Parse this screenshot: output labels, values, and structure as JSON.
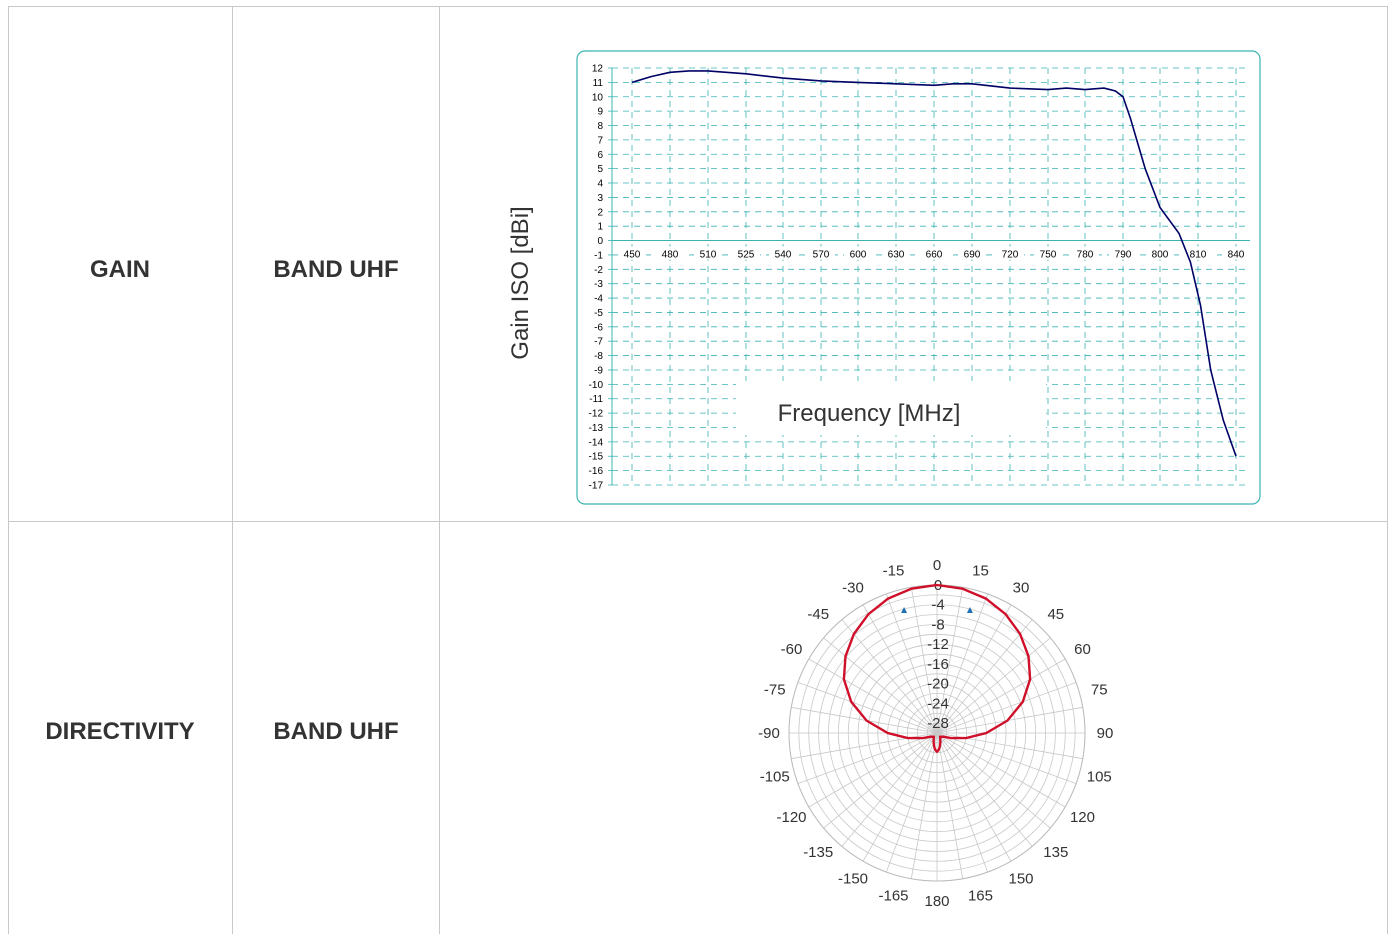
{
  "rows": [
    {
      "label": "GAIN",
      "band": "BAND UHF"
    },
    {
      "label": "DIRECTIVITY",
      "band": "BAND UHF"
    }
  ],
  "colors": {
    "grid_frame": "#3bb3b3",
    "gain_line": "#000066",
    "polar_line": "#d0102a",
    "polar_grid": "#c8c8c8",
    "marker": "#1f6fb5"
  },
  "chart_data": [
    {
      "type": "line",
      "title": "",
      "xlabel": "Frequency [MHz]",
      "ylabel": "Gain ISO [dBi]",
      "categories": [
        "450",
        "480",
        "510",
        "525",
        "540",
        "570",
        "600",
        "630",
        "660",
        "690",
        "720",
        "750",
        "780",
        "790",
        "800",
        "810",
        "840"
      ],
      "ylim": [
        -17,
        12
      ],
      "yticks": [
        12,
        11,
        10,
        9,
        8,
        7,
        6,
        5,
        4,
        3,
        2,
        1,
        0,
        -1,
        -2,
        -3,
        -4,
        -5,
        -6,
        -7,
        -8,
        -9,
        -10,
        -11,
        -12,
        -13,
        -14,
        -15,
        -16,
        -17
      ],
      "grid": true,
      "series": [
        {
          "values": [
            [
              450,
              11.0
            ],
            [
              465,
              11.4
            ],
            [
              480,
              11.7
            ],
            [
              495,
              11.8
            ],
            [
              510,
              11.8
            ],
            [
              525,
              11.6
            ],
            [
              540,
              11.3
            ],
            [
              570,
              11.1
            ],
            [
              600,
              11.0
            ],
            [
              630,
              10.9
            ],
            [
              660,
              10.8
            ],
            [
              675,
              10.9
            ],
            [
              690,
              10.9
            ],
            [
              720,
              10.6
            ],
            [
              750,
              10.5
            ],
            [
              765,
              10.6
            ],
            [
              780,
              10.5
            ],
            [
              785,
              10.6
            ],
            [
              788,
              10.4
            ],
            [
              790,
              10.0
            ],
            [
              792,
              8.5
            ],
            [
              796,
              5.0
            ],
            [
              800,
              2.3
            ],
            [
              805,
              0.5
            ],
            [
              808,
              -1.5
            ],
            [
              812,
              -4.5
            ],
            [
              820,
              -9.0
            ],
            [
              830,
              -12.5
            ],
            [
              840,
              -15.0
            ]
          ]
        }
      ]
    },
    {
      "type": "polar",
      "title": "",
      "angles": [
        "0",
        "15",
        "30",
        "45",
        "60",
        "75",
        "90",
        "105",
        "120",
        "135",
        "150",
        "165",
        "180",
        "-165",
        "-150",
        "-135",
        "-120",
        "-105",
        "-90",
        "-75",
        "-60",
        "-45",
        "-30",
        "-15"
      ],
      "radial_labels": [
        "0",
        "-4",
        "-8",
        "-12",
        "-16",
        "-20",
        "-24",
        "-28"
      ],
      "rlim": [
        -30,
        0
      ],
      "series": [
        {
          "values": [
            [
              0,
              0
            ],
            [
              10,
              -0.3
            ],
            [
              20,
              -1.0
            ],
            [
              30,
              -2.2
            ],
            [
              40,
              -3.8
            ],
            [
              50,
              -5.8
            ],
            [
              60,
              -8.2
            ],
            [
              70,
              -11.5
            ],
            [
              80,
              -15.5
            ],
            [
              90,
              -20
            ],
            [
              100,
              -24
            ],
            [
              110,
              -27
            ],
            [
              120,
              -28.5
            ],
            [
              140,
              -29
            ],
            [
              160,
              -28
            ],
            [
              170,
              -27
            ],
            [
              175,
              -26.5
            ],
            [
              180,
              -26.2
            ],
            [
              185,
              -26.5
            ],
            [
              190,
              -27
            ],
            [
              200,
              -28
            ],
            [
              220,
              -29
            ],
            [
              240,
              -28.5
            ],
            [
              250,
              -27
            ],
            [
              260,
              -24
            ],
            [
              270,
              -20
            ],
            [
              280,
              -15.5
            ],
            [
              290,
              -11.5
            ],
            [
              300,
              -8.2
            ],
            [
              310,
              -5.8
            ],
            [
              320,
              -3.8
            ],
            [
              330,
              -2.2
            ],
            [
              340,
              -1.0
            ],
            [
              350,
              -0.3
            ],
            [
              360,
              0
            ]
          ]
        }
      ]
    }
  ]
}
